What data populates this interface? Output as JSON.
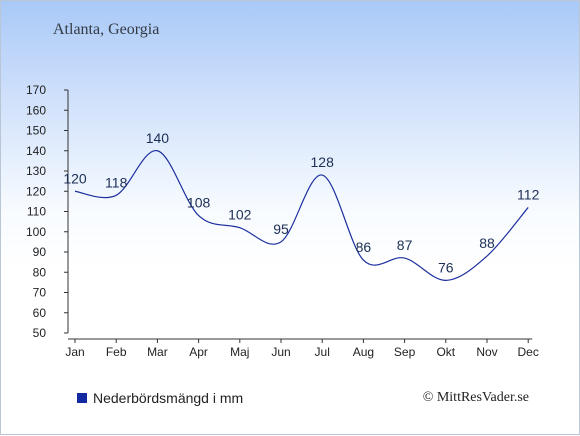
{
  "title": "Atlanta, Georgia",
  "legend_label": "Nederbördsmängd i mm",
  "credit": "© MittResVader.se",
  "colors": {
    "series_line": "#1c2f9e",
    "legend_swatch": "#1428a0",
    "axis": "#333333"
  },
  "chart_data": {
    "type": "line",
    "categories": [
      "Jan",
      "Feb",
      "Mar",
      "Apr",
      "Maj",
      "Jun",
      "Jul",
      "Aug",
      "Sep",
      "Okt",
      "Nov",
      "Dec"
    ],
    "series": [
      {
        "name": "Nederbördsmängd i mm",
        "values": [
          120,
          118,
          140,
          108,
          102,
          95,
          128,
          86,
          87,
          76,
          88,
          112
        ]
      }
    ],
    "ylim": [
      50,
      170
    ],
    "yticks": [
      50,
      60,
      70,
      80,
      90,
      100,
      110,
      120,
      130,
      140,
      150,
      160,
      170
    ],
    "grid": false,
    "legend_position": "bottom-left"
  }
}
